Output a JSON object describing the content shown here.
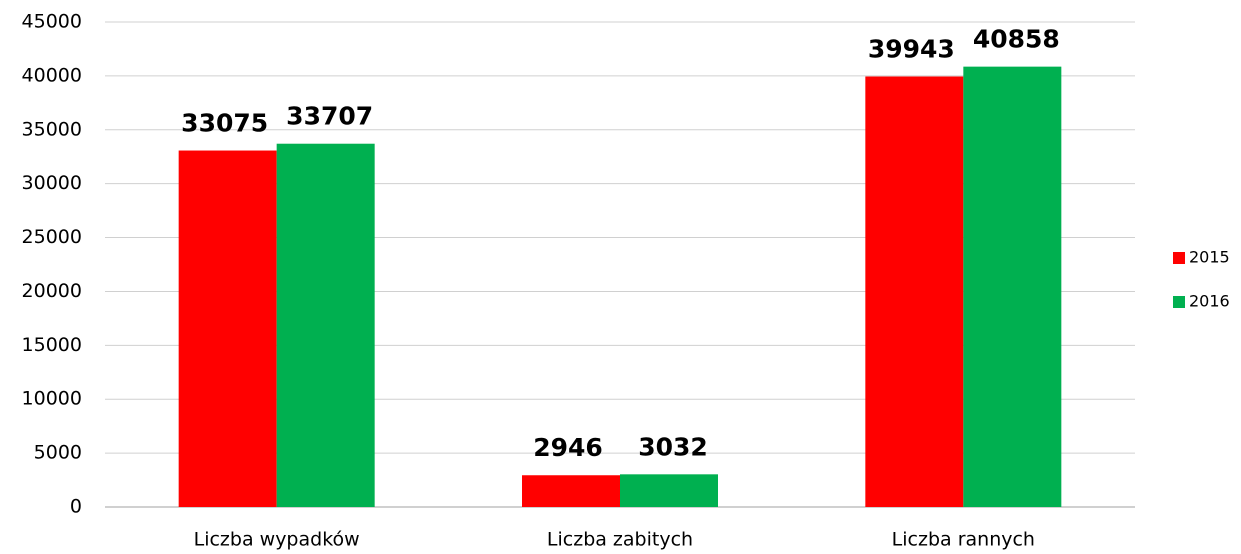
{
  "chart_data": {
    "type": "bar",
    "categories": [
      "Liczba wypadków",
      "Liczba zabitych",
      "Liczba rannych"
    ],
    "series": [
      {
        "name": "2015",
        "color": "#ff0000",
        "values": [
          33075,
          2946,
          39943
        ]
      },
      {
        "name": "2016",
        "color": "#00b050",
        "values": [
          33707,
          3032,
          40858
        ]
      }
    ],
    "ylim": [
      0,
      45000
    ],
    "yticks": [
      0,
      5000,
      10000,
      15000,
      20000,
      25000,
      30000,
      35000,
      40000,
      45000
    ],
    "grid": true,
    "legend": "right"
  }
}
